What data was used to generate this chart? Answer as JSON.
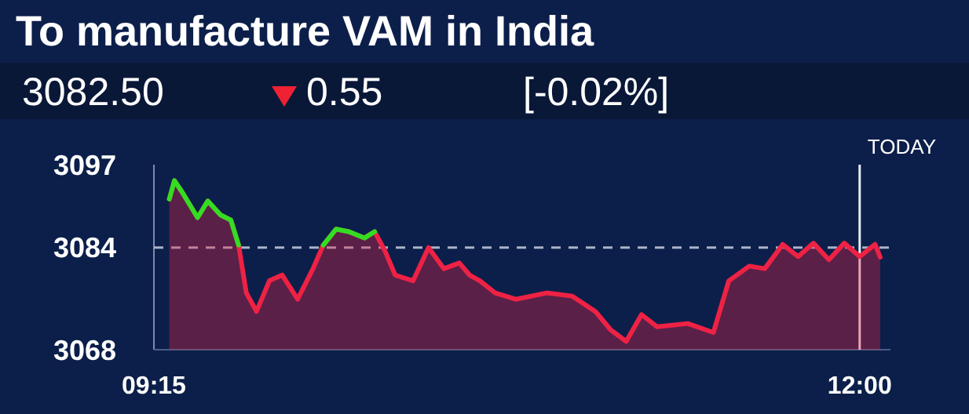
{
  "chart_data": {
    "type": "area",
    "title": "To manufacture VAM in India",
    "annotations": [
      "3082.50",
      "0.55",
      "[-0.02%]",
      "TODAY"
    ],
    "x": [
      9.31,
      9.33,
      9.36,
      9.42,
      9.46,
      9.51,
      9.55,
      9.58,
      9.61,
      9.65,
      9.7,
      9.75,
      9.81,
      9.87,
      9.91,
      9.96,
      10.01,
      10.07,
      10.11,
      10.15,
      10.19,
      10.26,
      10.32,
      10.38,
      10.44,
      10.48,
      10.52,
      10.58,
      10.66,
      10.78,
      10.88,
      10.97,
      11.03,
      11.09,
      11.15,
      11.21,
      11.33,
      11.43,
      11.49,
      11.57,
      11.63,
      11.7,
      11.76,
      11.82,
      11.88,
      11.94,
      12.0,
      12.06,
      12.08
    ],
    "series": [
      {
        "color": "#ee2244",
        "values": [
          3091.6,
          3094.5,
          3092.7,
          3088.7,
          3091.3,
          3089.1,
          3088.3,
          3084.4,
          3076.9,
          3074,
          3078.8,
          3079.7,
          3075.9,
          3080.7,
          3084.4,
          3086.9,
          3086.5,
          3085.5,
          3086.5,
          3083.5,
          3079.7,
          3078.8,
          3084,
          3080.7,
          3081.6,
          3079.7,
          3078.8,
          3076.9,
          3075.9,
          3076.9,
          3076.4,
          3074,
          3071.1,
          3069.3,
          3073.5,
          3071.6,
          3072.1,
          3070.7,
          3078.8,
          3081.1,
          3080.7,
          3084.5,
          3082.6,
          3084.7,
          3082.1,
          3084.7,
          3082.6,
          3084.5,
          3082.5
        ]
      },
      {
        "type": "line",
        "color": "#33dd22",
        "values": [
          3091.6,
          3094.5,
          3092.7,
          3088.7,
          3091.3,
          3089.1,
          3088.3,
          3084.4,
          null,
          null,
          null,
          null,
          null,
          null,
          3084.4,
          3086.9,
          3086.5,
          3085.5,
          3086.5,
          null,
          null,
          null,
          null,
          null,
          null,
          null,
          null,
          null,
          null,
          null,
          null,
          null,
          null,
          null,
          null,
          null,
          null,
          null,
          null,
          null,
          null,
          null,
          null,
          null,
          null,
          null,
          null,
          null,
          null
        ]
      }
    ],
    "xlim": [
      9.25,
      12.12
    ],
    "xticks": [
      {
        "value": 9.25,
        "label": "09:15"
      },
      {
        "value": 12,
        "label": "12:00"
      }
    ],
    "ylim": [
      3068,
      3097
    ],
    "yticks": [
      3068,
      3084,
      3097
    ],
    "ref_lines": [
      {
        "axis": "y",
        "value": 3084,
        "line_style": "dashed",
        "color": "#aab4c8"
      },
      {
        "axis": "x",
        "value": 12,
        "color": "#e8ecf4"
      }
    ]
  }
}
